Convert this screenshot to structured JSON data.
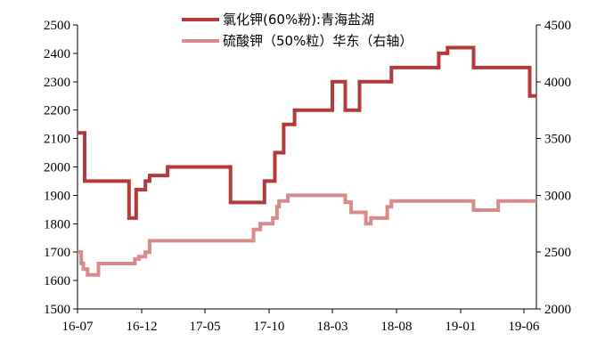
{
  "chart_data": {
    "type": "line",
    "title": "",
    "xlabel": "",
    "ylabel_left": "",
    "ylabel_right": "",
    "grid": false,
    "legend_position": "top-center",
    "x_range": [
      "2016-07",
      "2019-07"
    ],
    "x_ticks": [
      "16-07",
      "16-12",
      "17-05",
      "17-10",
      "18-03",
      "18-08",
      "19-01",
      "19-06"
    ],
    "y_left": {
      "min": 1500,
      "max": 2500,
      "step": 100,
      "ticks": [
        "1500",
        "1600",
        "1700",
        "1800",
        "1900",
        "2000",
        "2100",
        "2200",
        "2300",
        "2400",
        "2500"
      ]
    },
    "y_right": {
      "min": 2000,
      "max": 4500,
      "step": 500,
      "ticks": [
        "2000",
        "2500",
        "3000",
        "3500",
        "4000",
        "4500"
      ]
    },
    "series": [
      {
        "name": "氯化钾(60%粉):青海盐湖",
        "axis": "left",
        "color": "#b33a3a",
        "step": true,
        "points": [
          [
            "2016-07-01",
            2120
          ],
          [
            "2016-07-18",
            1950
          ],
          [
            "2016-11-01",
            1820
          ],
          [
            "2016-11-18",
            1920
          ],
          [
            "2016-12-10",
            1950
          ],
          [
            "2016-12-20",
            1970
          ],
          [
            "2017-02-01",
            2000
          ],
          [
            "2017-07-01",
            1875
          ],
          [
            "2017-09-20",
            1950
          ],
          [
            "2017-10-15",
            2050
          ],
          [
            "2017-11-05",
            2150
          ],
          [
            "2017-12-01",
            2200
          ],
          [
            "2018-03-01",
            2300
          ],
          [
            "2018-04-01",
            2200
          ],
          [
            "2018-05-05",
            2300
          ],
          [
            "2018-07-20",
            2350
          ],
          [
            "2018-11-10",
            2400
          ],
          [
            "2018-12-01",
            2420
          ],
          [
            "2019-02-01",
            2350
          ],
          [
            "2019-06-15",
            2250
          ],
          [
            "2019-07-01",
            2250
          ]
        ]
      },
      {
        "name": "硫酸钾（50%粒）华东（右轴）",
        "axis": "right",
        "color": "#d98a8a",
        "step": true,
        "points": [
          [
            "2016-07-01",
            2500
          ],
          [
            "2016-07-10",
            2400
          ],
          [
            "2016-07-15",
            2350
          ],
          [
            "2016-07-25",
            2300
          ],
          [
            "2016-08-20",
            2400
          ],
          [
            "2016-11-15",
            2440
          ],
          [
            "2016-11-25",
            2460
          ],
          [
            "2016-12-10",
            2500
          ],
          [
            "2016-12-20",
            2600
          ],
          [
            "2017-08-25",
            2700
          ],
          [
            "2017-09-10",
            2750
          ],
          [
            "2017-10-10",
            2800
          ],
          [
            "2017-10-20",
            2900
          ],
          [
            "2017-10-25",
            2950
          ],
          [
            "2017-11-15",
            3000
          ],
          [
            "2018-04-01",
            2940
          ],
          [
            "2018-04-15",
            2850
          ],
          [
            "2018-05-20",
            2750
          ],
          [
            "2018-06-01",
            2800
          ],
          [
            "2018-07-10",
            2900
          ],
          [
            "2018-07-20",
            2950
          ],
          [
            "2019-02-01",
            2870
          ],
          [
            "2019-04-01",
            2950
          ],
          [
            "2019-07-01",
            2950
          ]
        ]
      }
    ]
  }
}
